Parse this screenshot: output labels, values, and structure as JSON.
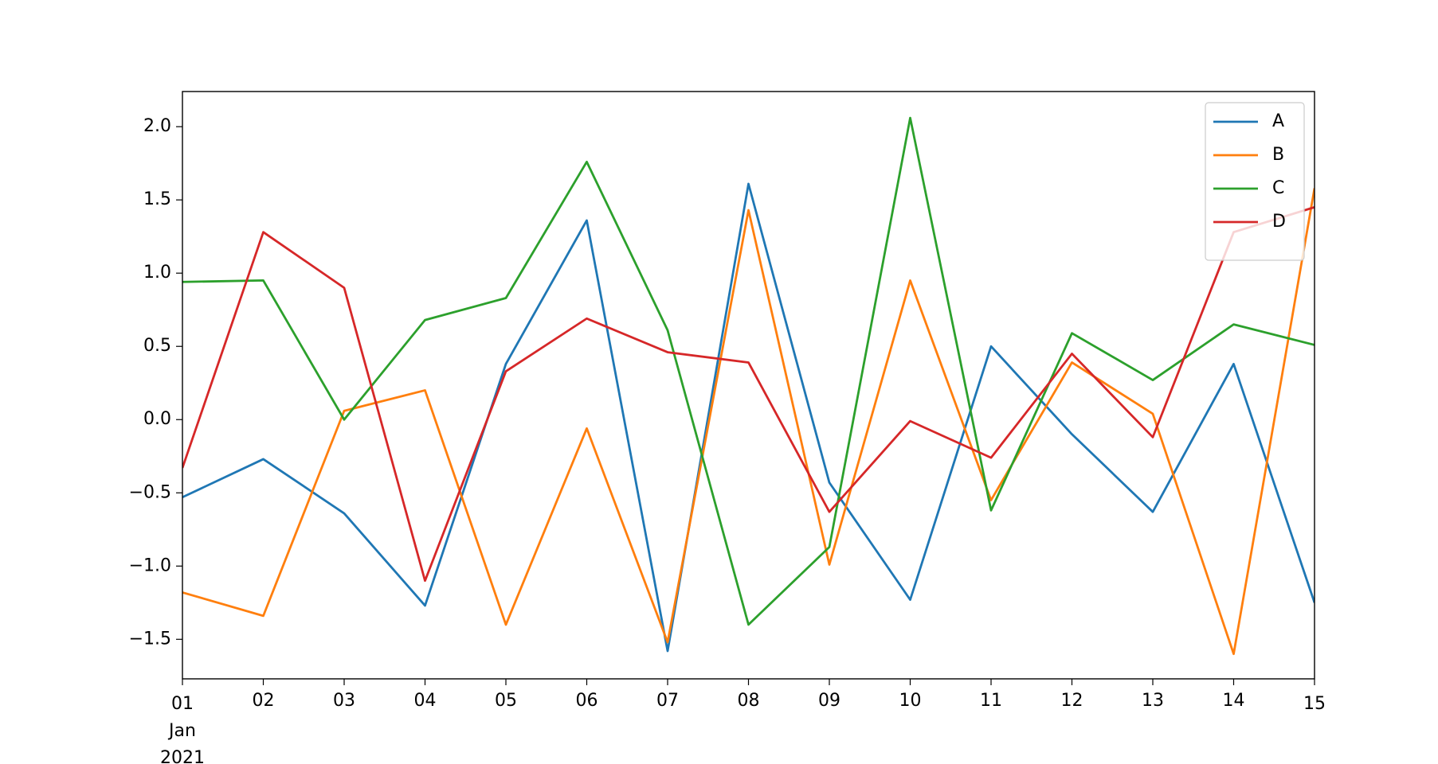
{
  "chart_data": {
    "type": "line",
    "categories": [
      "01",
      "02",
      "03",
      "04",
      "05",
      "06",
      "07",
      "08",
      "09",
      "10",
      "11",
      "12",
      "13",
      "14",
      "15"
    ],
    "x_month": "Jan",
    "x_year": "2021",
    "series": [
      {
        "name": "A",
        "color": "#1f77b4",
        "values": [
          -0.53,
          -0.27,
          -0.64,
          -1.27,
          0.38,
          1.36,
          -1.58,
          1.61,
          -0.43,
          -1.23,
          0.5,
          -0.1,
          -0.63,
          0.38,
          -1.25
        ]
      },
      {
        "name": "B",
        "color": "#ff7f0e",
        "values": [
          -1.18,
          -1.34,
          0.06,
          0.2,
          -1.4,
          -0.06,
          -1.52,
          1.43,
          -0.99,
          0.95,
          -0.55,
          0.39,
          0.04,
          -1.6,
          1.58
        ]
      },
      {
        "name": "C",
        "color": "#2ca02c",
        "values": [
          0.94,
          0.95,
          0.0,
          0.68,
          0.83,
          1.76,
          0.61,
          -1.4,
          -0.87,
          2.06,
          -0.62,
          0.59,
          0.27,
          0.65,
          0.51
        ]
      },
      {
        "name": "D",
        "color": "#d62728",
        "values": [
          -0.33,
          1.28,
          0.9,
          -1.1,
          0.33,
          0.69,
          0.46,
          0.39,
          -0.63,
          -0.01,
          -0.26,
          0.45,
          -0.12,
          1.28,
          1.45
        ]
      }
    ],
    "ylim": [
      -1.77,
      2.24
    ],
    "yticks": [
      {
        "value": -1.5,
        "label": "−1.5"
      },
      {
        "value": -1.0,
        "label": "−1.0"
      },
      {
        "value": -0.5,
        "label": "−0.5"
      },
      {
        "value": 0,
        "label": "0.0"
      },
      0.5,
      {
        "value": 1.0,
        "label": "1.0"
      },
      1.5,
      {
        "value": 2.0,
        "label": "2.0"
      }
    ],
    "grid": false,
    "legend": "upper right"
  }
}
